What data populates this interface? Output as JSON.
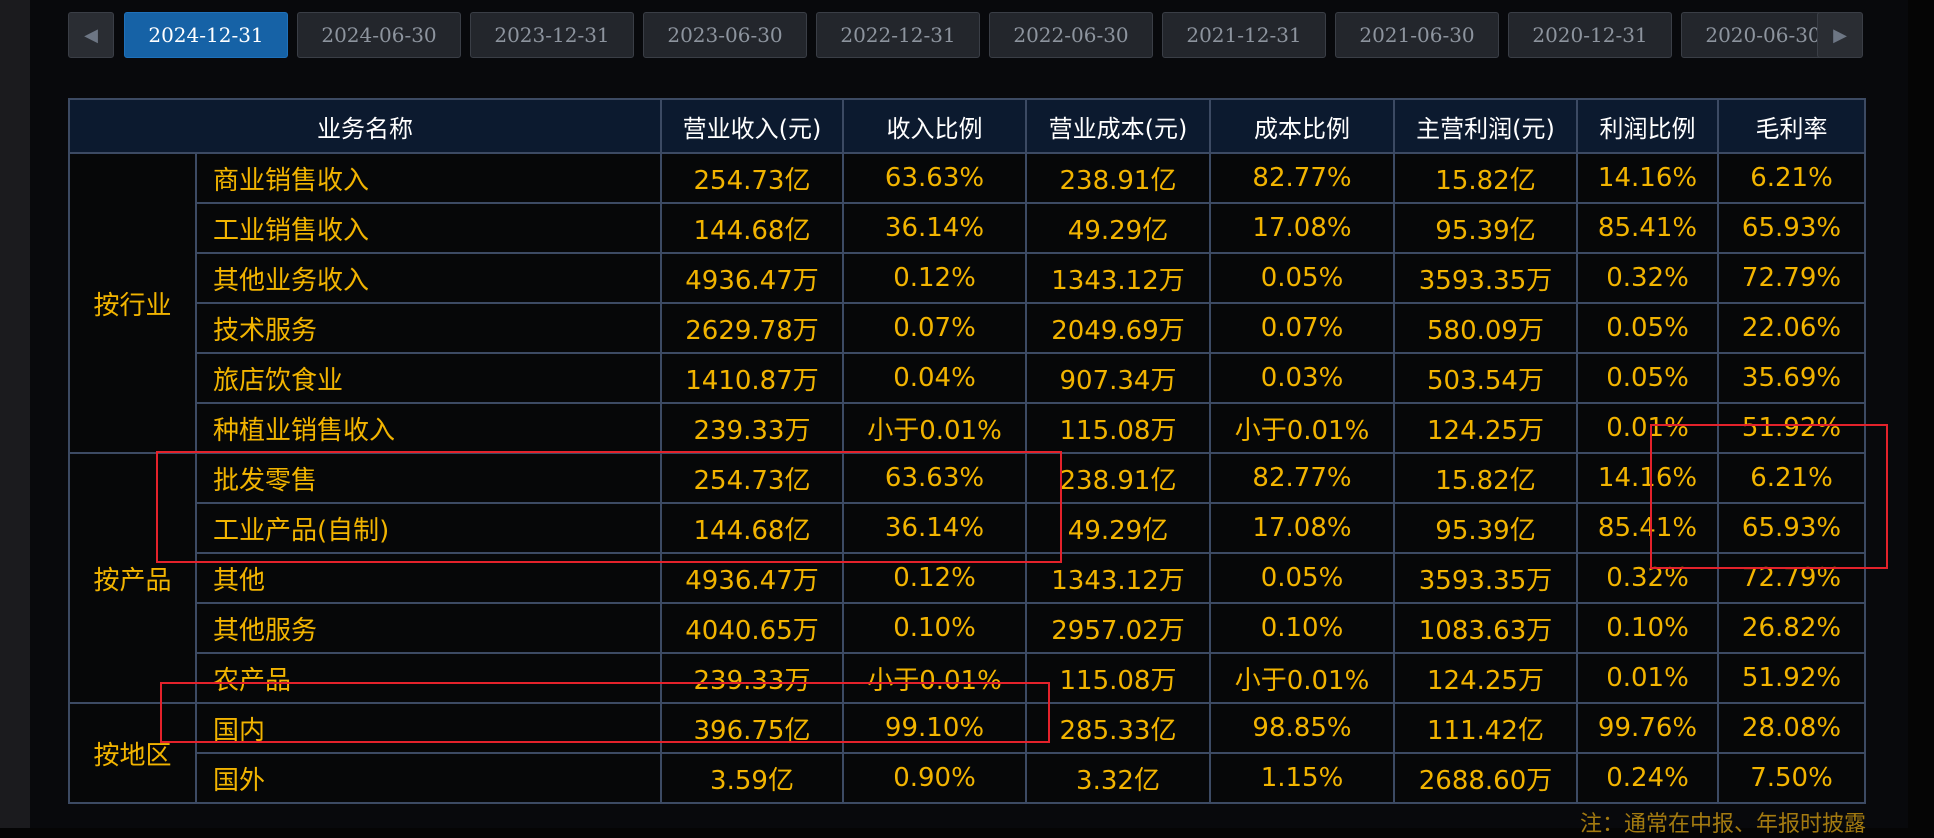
{
  "date_tabs": [
    "2024-12-31",
    "2024-06-30",
    "2023-12-31",
    "2023-06-30",
    "2022-12-31",
    "2022-06-30",
    "2021-12-31",
    "2021-06-30",
    "2020-12-31",
    "2020-06-30"
  ],
  "active_tab": "2024-12-31",
  "icons": {
    "prev": "chevron-left-icon",
    "next": "chevron-right-icon"
  },
  "table": {
    "headers": [
      "业务名称",
      "营业收入(元)",
      "收入比例",
      "营业成本(元)",
      "成本比例",
      "主营利润(元)",
      "利润比例",
      "毛利率"
    ],
    "groups": [
      {
        "label": "按行业",
        "rows": [
          [
            "商业销售收入",
            "254.73亿",
            "63.63%",
            "238.91亿",
            "82.77%",
            "15.82亿",
            "14.16%",
            "6.21%"
          ],
          [
            "工业销售收入",
            "144.68亿",
            "36.14%",
            "49.29亿",
            "17.08%",
            "95.39亿",
            "85.41%",
            "65.93%"
          ],
          [
            "其他业务收入",
            "4936.47万",
            "0.12%",
            "1343.12万",
            "0.05%",
            "3593.35万",
            "0.32%",
            "72.79%"
          ],
          [
            "技术服务",
            "2629.78万",
            "0.07%",
            "2049.69万",
            "0.07%",
            "580.09万",
            "0.05%",
            "22.06%"
          ],
          [
            "旅店饮食业",
            "1410.87万",
            "0.04%",
            "907.34万",
            "0.03%",
            "503.54万",
            "0.05%",
            "35.69%"
          ],
          [
            "种植业销售收入",
            "239.33万",
            "小于0.01%",
            "115.08万",
            "小于0.01%",
            "124.25万",
            "0.01%",
            "51.92%"
          ]
        ]
      },
      {
        "label": "按产品",
        "rows": [
          [
            "批发零售",
            "254.73亿",
            "63.63%",
            "238.91亿",
            "82.77%",
            "15.82亿",
            "14.16%",
            "6.21%"
          ],
          [
            "工业产品(自制)",
            "144.68亿",
            "36.14%",
            "49.29亿",
            "17.08%",
            "95.39亿",
            "85.41%",
            "65.93%"
          ],
          [
            "其他",
            "4936.47万",
            "0.12%",
            "1343.12万",
            "0.05%",
            "3593.35万",
            "0.32%",
            "72.79%"
          ],
          [
            "其他服务",
            "4040.65万",
            "0.10%",
            "2957.02万",
            "0.10%",
            "1083.63万",
            "0.10%",
            "26.82%"
          ],
          [
            "农产品",
            "239.33万",
            "小于0.01%",
            "115.08万",
            "小于0.01%",
            "124.25万",
            "0.01%",
            "51.92%"
          ]
        ]
      },
      {
        "label": "按地区",
        "rows": [
          [
            "国内",
            "396.75亿",
            "99.10%",
            "285.33亿",
            "98.85%",
            "111.42亿",
            "99.76%",
            "28.08%"
          ],
          [
            "国外",
            "3.59亿",
            "0.90%",
            "3.32亿",
            "1.15%",
            "2688.60万",
            "0.24%",
            "7.50%"
          ]
        ]
      }
    ]
  },
  "footnote": "注：通常在中报、年报时披露",
  "colors": {
    "accent": "#1662a6",
    "value_text": "#f2b400",
    "highlight": "#e3222b",
    "grid_line": "#3c4a63"
  }
}
